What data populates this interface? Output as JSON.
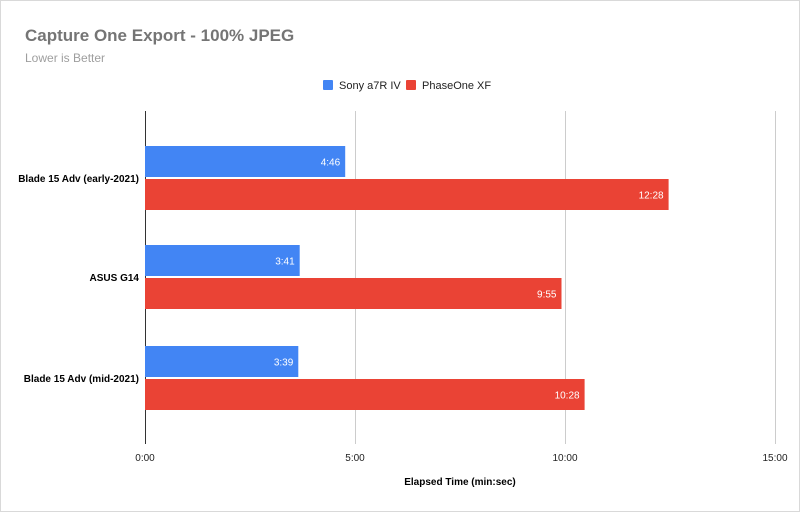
{
  "chart_data": {
    "type": "bar",
    "orientation": "horizontal",
    "title": "Capture One Export - 100% JPEG",
    "subtitle": "Lower is Better",
    "xlabel": "Elapsed Time (min:sec)",
    "ylabel": "",
    "categories": [
      "Blade 15 Adv (early-2021)",
      "ASUS G14",
      "Blade 15 Adv (mid-2021)"
    ],
    "series": [
      {
        "name": "Sony a7R IV",
        "color": "#4285f4",
        "values": [
          286,
          221,
          219
        ],
        "labels": [
          "4:46",
          "3:41",
          "3:39"
        ]
      },
      {
        "name": "PhaseOne XF",
        "color": "#ea4335",
        "values": [
          748,
          595,
          628
        ],
        "labels": [
          "12:28",
          "9:55",
          "10:28"
        ]
      }
    ],
    "xlim": [
      0,
      900
    ],
    "ticks": [
      {
        "value": 0,
        "label": "0:00"
      },
      {
        "value": 300,
        "label": "5:00"
      },
      {
        "value": 600,
        "label": "10:00"
      },
      {
        "value": 900,
        "label": "15:00"
      }
    ],
    "grid": true,
    "legend_position": "top"
  }
}
